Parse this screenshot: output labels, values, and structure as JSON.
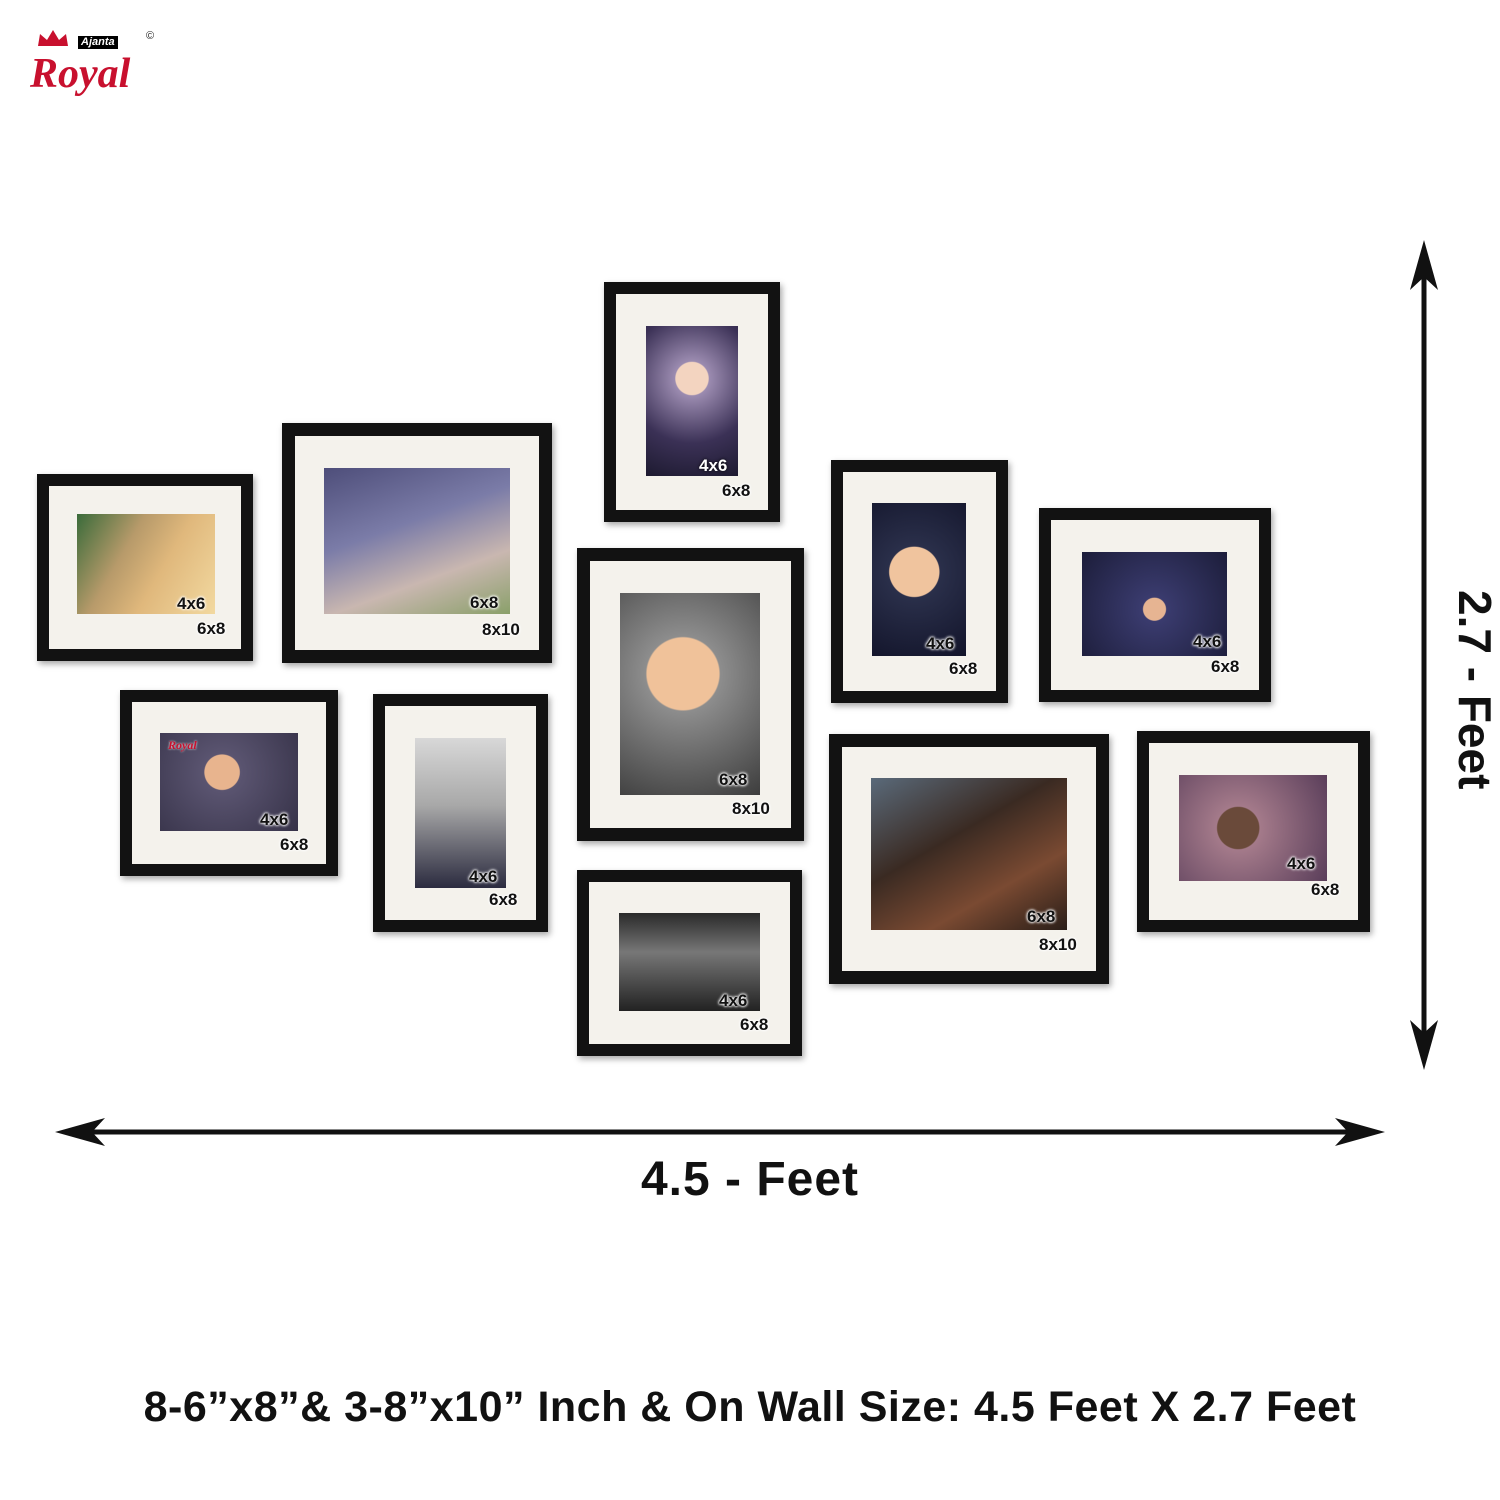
{
  "logo": {
    "brand_top": "Ajanta",
    "brand": "Royal",
    "copyright": "©"
  },
  "frames": [
    {
      "mat_label": "6x8",
      "photo_label": "4x6"
    },
    {
      "mat_label": "8x10",
      "photo_label": "6x8"
    },
    {
      "mat_label": "6x8",
      "photo_label": "4x6"
    },
    {
      "mat_label": "8x10",
      "photo_label": "6x8"
    },
    {
      "mat_label": "6x8",
      "photo_label": "4x6"
    },
    {
      "mat_label": "6x8",
      "photo_label": "4x6"
    },
    {
      "mat_label": "6x8",
      "photo_label": "4x6"
    },
    {
      "mat_label": "6x8",
      "photo_label": "4x6"
    },
    {
      "mat_label": "6x8",
      "photo_label": "4x6"
    },
    {
      "mat_label": "8x10",
      "photo_label": "6x8"
    },
    {
      "mat_label": "6x8",
      "photo_label": "4x6"
    }
  ],
  "photo_watermark": "Royal",
  "dimensions": {
    "width": "4.5 - Feet",
    "height": "2.7 - Feet"
  },
  "caption": "8-6”x8”& 3-8”x10” Inch & On Wall Size:  4.5 Feet X 2.7 Feet",
  "colors": {
    "frame": "#121212",
    "mat": "#f4f2ec",
    "brand": "#c8102e",
    "text": "#111111"
  }
}
